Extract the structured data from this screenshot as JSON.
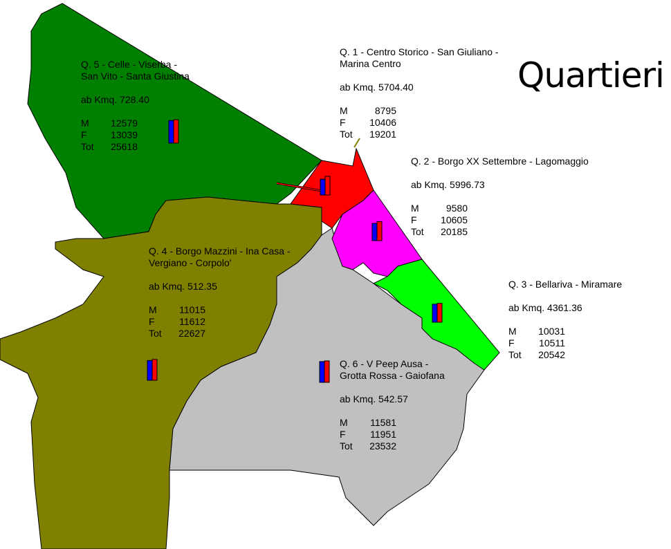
{
  "title": "Quartieri",
  "labels": {
    "density": "ab Kmq.",
    "m": "M",
    "f": "F",
    "tot": "Tot"
  },
  "colors": {
    "male_bar": "#0000ff",
    "female_bar": "#ff0000"
  },
  "quartieri": [
    {
      "id": "q5",
      "name_lines": [
        "Q. 5 - Celle - Viserba -",
        "San Vito - Santa Giustina"
      ],
      "density": "728.40",
      "m": 12579,
      "f": 13039,
      "tot": 25618,
      "color": "#007f00"
    },
    {
      "id": "q1",
      "name_lines": [
        "Q. 1 - Centro Storico - San Giuliano -",
        "Marina Centro"
      ],
      "density": "5704.40",
      "m": 8795,
      "f": 10406,
      "tot": 19201,
      "color": "#ff0000"
    },
    {
      "id": "q2",
      "name_lines": [
        "Q. 2 - Borgo XX Settembre - Lagomaggio"
      ],
      "density": "5996.73",
      "m": 9580,
      "f": 10605,
      "tot": 20185,
      "color": "#ff00ff"
    },
    {
      "id": "q4",
      "name_lines": [
        "Q. 4 - Borgo Mazzini - Ina Casa -",
        "Vergiano - Corpolo'"
      ],
      "density": "512.35",
      "m": 11015,
      "f": 11612,
      "tot": 22627,
      "color": "#7f7f00"
    },
    {
      "id": "q3",
      "name_lines": [
        "Q. 3 - Bellariva - Miramare"
      ],
      "density": "4361.36",
      "m": 10031,
      "f": 10511,
      "tot": 20542,
      "color": "#00ff00"
    },
    {
      "id": "q6",
      "name_lines": [
        "Q. 6 - V Peep Ausa -",
        "Grotta Rossa - Gaiofana"
      ],
      "density": "542.57",
      "m": 11581,
      "f": 11951,
      "tot": 23532,
      "color": "#c0c0c0"
    }
  ]
}
